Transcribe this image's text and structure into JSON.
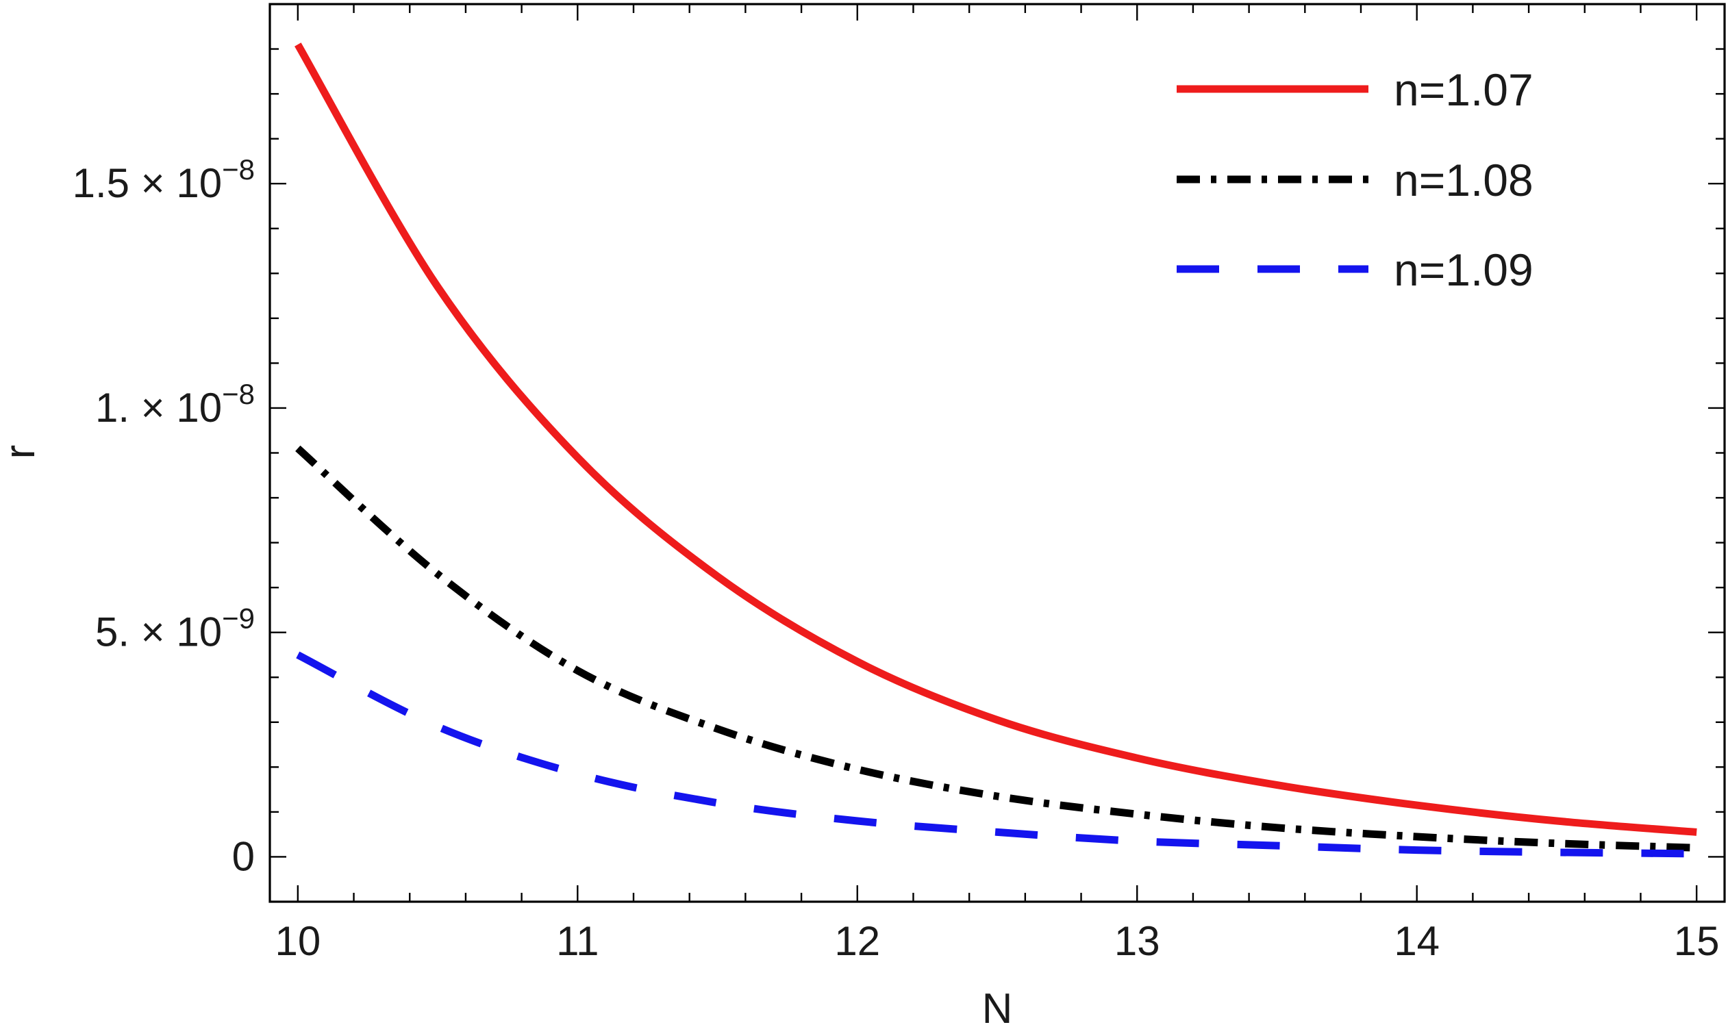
{
  "chart_data": {
    "type": "line",
    "title": "",
    "xlabel": "N",
    "ylabel": "r",
    "xlim": [
      9.9,
      15.1
    ],
    "ylim": [
      -1e-09,
      1.9e-08
    ],
    "x_ticks": [
      10,
      11,
      12,
      13,
      14,
      15
    ],
    "x_tick_labels": [
      "10",
      "11",
      "12",
      "13",
      "14",
      "15"
    ],
    "y_ticks": [
      0,
      5e-09,
      1e-08,
      1.5e-08
    ],
    "y_tick_labels": [
      {
        "mantissa": "0",
        "exponent": ""
      },
      {
        "mantissa": "5. × 10",
        "exponent": "−9"
      },
      {
        "mantissa": "1. × 10",
        "exponent": "−8"
      },
      {
        "mantissa": "1.5 × 10",
        "exponent": "−8"
      }
    ],
    "grid": false,
    "legend_position": "top-right",
    "x": [
      10.0,
      10.5,
      11.0,
      11.5,
      12.0,
      12.5,
      13.0,
      13.5,
      14.0,
      14.5,
      15.0
    ],
    "series": [
      {
        "name": "n=1.07",
        "color": "#ee1c1c",
        "style": "solid",
        "values": [
          1.81e-08,
          1.27e-08,
          8.9e-09,
          6.25e-09,
          4.35e-09,
          3.05e-09,
          2.2e-09,
          1.6e-09,
          1.15e-09,
          8e-10,
          5.5e-10
        ]
      },
      {
        "name": "n=1.08",
        "color": "#000000",
        "style": "dashdot",
        "values": [
          9.1e-09,
          6.3e-09,
          4.15e-09,
          2.85e-09,
          1.95e-09,
          1.35e-09,
          9.5e-10,
          6.5e-10,
          4.5e-10,
          3e-10,
          2e-10
        ]
      },
      {
        "name": "n=1.09",
        "color": "#1414ee",
        "style": "dashed",
        "values": [
          4.5e-09,
          2.9e-09,
          1.85e-09,
          1.2e-09,
          8e-10,
          5.5e-10,
          3.5e-10,
          2.5e-10,
          1.5e-10,
          1e-10,
          7e-11
        ]
      }
    ]
  }
}
